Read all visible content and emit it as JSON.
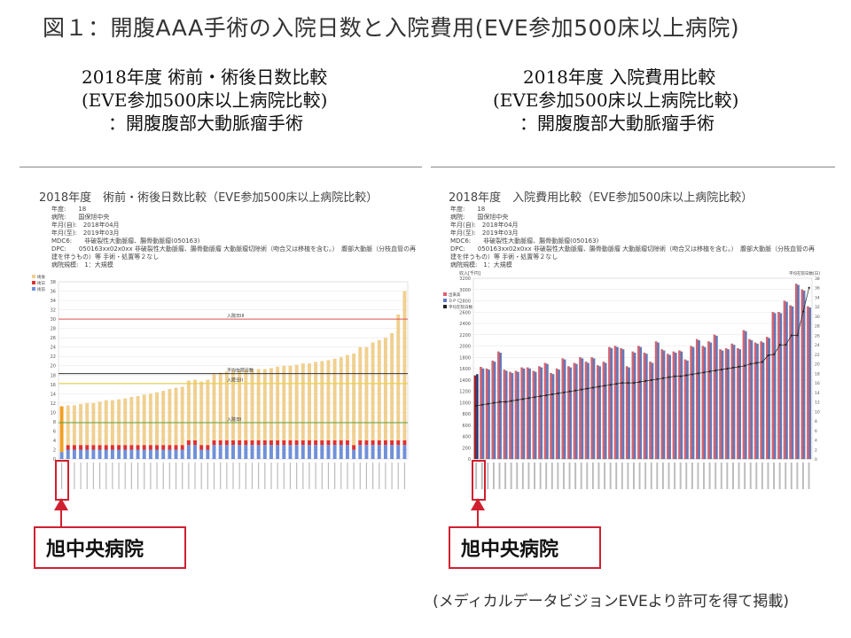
{
  "page_title": "図１：開腹AAA手術の入院日数と入院費用(EVE参加500床以上病院)",
  "left": {
    "heading": [
      "2018年度 術前・術後日数比較",
      "(EVE参加500床以上病院比較)",
      "：開腹腹部大動脈瘤手術"
    ],
    "callout": "旭中央病院"
  },
  "right": {
    "heading": [
      "2018年度 入院費用比較",
      "(EVE参加500床以上病院比較)",
      "：開腹腹部大動脈瘤手術"
    ],
    "callout": "旭中央病院"
  },
  "footer": "(メディカルデータビジョンEVEより許可を得て掲載)",
  "chart_data": [
    {
      "type": "bar",
      "title": "2018年度　術前・術後日数比較（EVE参加500床以上病院比較）",
      "meta": [
        "年度:　　18",
        "病院:　　国保旭中央",
        "年月(自):　2018年04月",
        "年月(至):　2019年03月",
        "MDC6:　　非破裂性大動脈瘤、腸骨動脈瘤(050163)",
        "DPC:　　050163xx02x0xx 非破裂性大動脈瘤、腸骨動脈瘤 大動脈瘤切除術（吻合又は移植を含む。）　腹部大動脈（分枝血管の再",
        "建を伴うもの）等 手術・処置等２なし",
        "病院規模:　1：大規模"
      ],
      "legend": [
        "術後",
        "術日",
        "術前"
      ],
      "legend_position": "top-left",
      "stacked": true,
      "ylim": [
        0,
        38
      ],
      "yticks": [
        0,
        2,
        4,
        6,
        8,
        10,
        12,
        14,
        16,
        18,
        20,
        22,
        24,
        26,
        28,
        30,
        32,
        34,
        36,
        38
      ],
      "reference_lines": [
        {
          "label": "入院日III",
          "value": 30,
          "color": "#e05050"
        },
        {
          "label": "平均在院日数",
          "value": 18.3,
          "color": "#333333"
        },
        {
          "label": "入院日II",
          "value": 16.2,
          "color": "#e8d040"
        },
        {
          "label": "入院日I",
          "value": 7.8,
          "color": "#60a040"
        }
      ],
      "series": [
        {
          "name": "術前",
          "color": "#7090d8",
          "values": [
            1.5,
            2,
            2,
            2,
            2,
            2,
            2,
            2,
            2,
            2,
            2,
            2,
            2,
            2,
            2,
            2,
            2,
            2,
            2,
            2,
            3,
            3,
            2,
            2,
            3,
            3,
            3,
            3,
            3,
            3,
            3,
            3,
            3,
            3,
            3,
            3,
            3,
            3,
            3,
            3,
            3,
            3,
            3,
            3,
            3,
            3,
            2,
            3,
            3,
            3,
            3,
            3,
            3,
            3,
            3
          ]
        },
        {
          "name": "術日",
          "color": "#e03030",
          "values": [
            0,
            1,
            1,
            1,
            1,
            1,
            1,
            1,
            1,
            1,
            1,
            1,
            1,
            1,
            1,
            1,
            1,
            1,
            1,
            1,
            1,
            1,
            1,
            1,
            1,
            1,
            1,
            1,
            1,
            1,
            1,
            1,
            1,
            1,
            1,
            1,
            1,
            1,
            1,
            1,
            1,
            1,
            1,
            1,
            1,
            1,
            1,
            1,
            1,
            1,
            1,
            1,
            1,
            1,
            1
          ]
        },
        {
          "name": "術後",
          "color": "#f0d090",
          "values": [
            9.8,
            8.5,
            8.5,
            8.8,
            9,
            9,
            9.3,
            9.6,
            9.6,
            9.8,
            10,
            10.3,
            10.5,
            10.8,
            11,
            11.3,
            11.6,
            12,
            12.3,
            12.5,
            12.8,
            13,
            13.6,
            14,
            14.2,
            14.5,
            14.8,
            15,
            15,
            15.2,
            15.2,
            15.3,
            15.3,
            15.5,
            15.8,
            16,
            16,
            16.2,
            16.5,
            16.5,
            16.8,
            17,
            17.2,
            17.5,
            17.8,
            18.3,
            19.6,
            20,
            20,
            21,
            21.5,
            22,
            23,
            27,
            32
          ]
        }
      ],
      "highlight_index": 0
    },
    {
      "type": "bar",
      "title": "2018年度　入院費用比較（EVE参加500床以上病院比較）",
      "meta": [
        "年度:　　18",
        "病院:　　国保旭中央",
        "年月(自):　2018年04月",
        "年月(至):　2019年03月",
        "MDC6:　　非破裂性大動脈瘤、腸骨動脈瘤(050163)",
        "DPC:　　050163xx02x0xx 非破裂性大動脈瘤、腸骨動脈瘤 大動脈瘤切除術（吻合又は移植を含む。）　腹部大動脈（分枝血管の再",
        "建を伴うもの）等 手術・処置等２なし",
        "病院規模:　1：大規模"
      ],
      "legend": [
        "出来高",
        "ＤＰＣ",
        "平均在院日数"
      ],
      "legend_position": "top-left",
      "ylabel": "収入[千円]",
      "y2label": "平均在院日数[日]",
      "ylim": [
        0,
        3200
      ],
      "yticks": [
        0,
        200,
        400,
        600,
        800,
        1000,
        1200,
        1400,
        1600,
        1800,
        2000,
        2200,
        2400,
        2600,
        2800,
        3000,
        3200
      ],
      "y2lim": [
        0,
        38
      ],
      "y2ticks": [
        0,
        2,
        4,
        6,
        8,
        10,
        12,
        14,
        16,
        18,
        20,
        22,
        24,
        26,
        28,
        30,
        32,
        34,
        36,
        38
      ],
      "series": [
        {
          "name": "出来高",
          "color": "#e06070",
          "values": [
            1480,
            1630,
            1600,
            1740,
            1900,
            1580,
            1540,
            1560,
            1620,
            1620,
            1560,
            1640,
            1700,
            1520,
            1600,
            1780,
            1640,
            1700,
            1800,
            1720,
            1800,
            1660,
            1720,
            1980,
            2000,
            1960,
            1640,
            1900,
            2000,
            1880,
            1720,
            2080,
            1940,
            1860,
            1900,
            1920,
            1760,
            2000,
            2120,
            2000,
            2080,
            2200,
            1940,
            1960,
            2040,
            1960,
            2280,
            2120,
            2060,
            2080,
            2160,
            2600,
            2600,
            2800,
            2720,
            3100,
            3000,
            2700
          ]
        },
        {
          "name": "ＤＰＣ",
          "color": "#6078c0",
          "values": [
            1500,
            1600,
            1580,
            1720,
            1880,
            1560,
            1520,
            1540,
            1600,
            1600,
            1540,
            1620,
            1680,
            1500,
            1580,
            1760,
            1620,
            1680,
            1780,
            1700,
            1780,
            1640,
            1700,
            1960,
            1980,
            1940,
            1620,
            1880,
            1980,
            1860,
            1700,
            2060,
            1920,
            1840,
            1880,
            1900,
            1740,
            1980,
            2100,
            1980,
            2060,
            2180,
            1920,
            1940,
            2020,
            1940,
            2260,
            2100,
            2040,
            2060,
            2140,
            2580,
            2580,
            2780,
            2700,
            3080,
            2980,
            2680
          ]
        },
        {
          "name": "平均在院日数",
          "type": "line",
          "axis": "y2",
          "color": "#222222",
          "values": [
            11.2,
            11.4,
            11.6,
            11.8,
            12,
            12,
            12.2,
            12.4,
            12.6,
            12.8,
            13,
            13.2,
            13.4,
            13.6,
            13.8,
            14,
            14.2,
            14.4,
            14.6,
            14.8,
            15,
            15.2,
            15.4,
            15.6,
            15.8,
            16,
            16,
            16,
            16.2,
            16.4,
            16.6,
            16.8,
            17,
            17.2,
            17.4,
            17.4,
            17.6,
            17.8,
            18,
            18.2,
            18.4,
            18.6,
            18.8,
            19,
            19.2,
            19.4,
            19.6,
            20,
            20.2,
            20.4,
            21.8,
            22,
            24,
            24,
            26,
            26,
            31,
            36
          ]
        }
      ],
      "highlight_index": 0
    }
  ]
}
